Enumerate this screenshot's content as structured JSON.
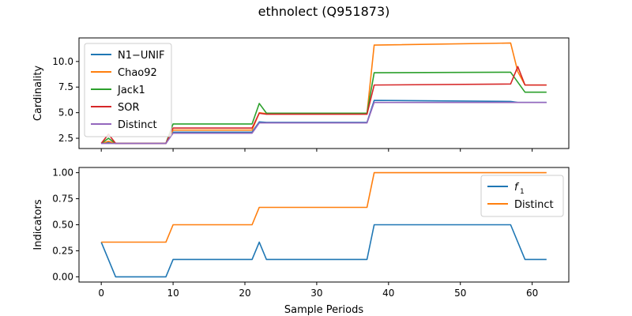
{
  "figure": {
    "title": "ethnolect (Q951873)",
    "xlabel": "Sample Periods"
  },
  "chart_data": [
    {
      "type": "line",
      "ylabel": "Cardinality",
      "xlim": [
        -3.1,
        65.1
      ],
      "ylim": [
        1.5,
        12.3
      ],
      "xticks": [
        0,
        10,
        20,
        30,
        40,
        50,
        60
      ],
      "yticks": [
        2.5,
        5.0,
        7.5,
        10.0
      ],
      "ytick_labels": [
        "2.5",
        "5.0",
        "7.5",
        "10.0"
      ],
      "legend": "upper-left",
      "grid": false,
      "series": [
        {
          "name": "N1−UNIF",
          "color": "#1f77b4",
          "points": [
            [
              0,
              2.0
            ],
            [
              1,
              2.1
            ],
            [
              2,
              2.0
            ],
            [
              9,
              2.0
            ],
            [
              10,
              3.1
            ],
            [
              21,
              3.1
            ],
            [
              22,
              4.1
            ],
            [
              23,
              4.05
            ],
            [
              37,
              4.05
            ],
            [
              38,
              6.2
            ],
            [
              57,
              6.1
            ],
            [
              58,
              6.0
            ],
            [
              62,
              6.0
            ]
          ]
        },
        {
          "name": "Chao92",
          "color": "#ff7f0e",
          "points": [
            [
              0,
              2.0
            ],
            [
              1,
              2.2
            ],
            [
              2,
              2.0
            ],
            [
              9,
              2.0
            ],
            [
              10,
              3.3
            ],
            [
              21,
              3.3
            ],
            [
              22,
              5.0
            ],
            [
              23,
              4.9
            ],
            [
              37,
              4.9
            ],
            [
              38,
              11.6
            ],
            [
              57,
              11.8
            ],
            [
              58,
              9.0
            ],
            [
              59,
              7.7
            ],
            [
              62,
              7.7
            ]
          ]
        },
        {
          "name": "Jack1",
          "color": "#2ca02c",
          "points": [
            [
              0,
              2.0
            ],
            [
              1,
              2.5
            ],
            [
              2,
              2.0
            ],
            [
              9,
              2.0
            ],
            [
              10,
              3.9
            ],
            [
              21,
              3.9
            ],
            [
              22,
              5.9
            ],
            [
              23,
              4.95
            ],
            [
              37,
              4.95
            ],
            [
              38,
              8.9
            ],
            [
              57,
              8.95
            ],
            [
              59,
              7.0
            ],
            [
              62,
              7.0
            ]
          ]
        },
        {
          "name": "SOR",
          "color": "#d62728",
          "points": [
            [
              0,
              2.0
            ],
            [
              1,
              2.9
            ],
            [
              2,
              2.0
            ],
            [
              9,
              2.0
            ],
            [
              10,
              3.5
            ],
            [
              21,
              3.5
            ],
            [
              22,
              4.95
            ],
            [
              23,
              4.85
            ],
            [
              37,
              4.85
            ],
            [
              38,
              7.7
            ],
            [
              57,
              7.8
            ],
            [
              58,
              9.5
            ],
            [
              59,
              7.7
            ],
            [
              62,
              7.7
            ]
          ]
        },
        {
          "name": "Distinct",
          "color": "#9467bd",
          "points": [
            [
              0,
              2.0
            ],
            [
              2,
              2.0
            ],
            [
              9,
              2.0
            ],
            [
              10,
              3.0
            ],
            [
              21,
              3.0
            ],
            [
              22,
              4.0
            ],
            [
              37,
              4.0
            ],
            [
              38,
              6.0
            ],
            [
              62,
              6.0
            ]
          ]
        }
      ]
    },
    {
      "type": "line",
      "ylabel": "Indicators",
      "xlim": [
        -3.1,
        65.1
      ],
      "ylim": [
        -0.05,
        1.05
      ],
      "xticks": [
        0,
        10,
        20,
        30,
        40,
        50,
        60
      ],
      "yticks": [
        0.0,
        0.25,
        0.5,
        0.75,
        1.0
      ],
      "ytick_labels": [
        "0.00",
        "0.25",
        "0.50",
        "0.75",
        "1.00"
      ],
      "legend": "upper-right",
      "grid": false,
      "series": [
        {
          "name": "f1",
          "label_main": "f",
          "label_sub": "1",
          "color": "#1f77b4",
          "points": [
            [
              0,
              0.333
            ],
            [
              2,
              0.0
            ],
            [
              9,
              0.0
            ],
            [
              10,
              0.167
            ],
            [
              21,
              0.167
            ],
            [
              22,
              0.333
            ],
            [
              23,
              0.167
            ],
            [
              37,
              0.167
            ],
            [
              38,
              0.5
            ],
            [
              57,
              0.5
            ],
            [
              59,
              0.167
            ],
            [
              62,
              0.167
            ]
          ]
        },
        {
          "name": "Distinct",
          "color": "#ff7f0e",
          "points": [
            [
              0,
              0.333
            ],
            [
              9,
              0.333
            ],
            [
              10,
              0.5
            ],
            [
              21,
              0.5
            ],
            [
              22,
              0.667
            ],
            [
              37,
              0.667
            ],
            [
              38,
              1.0
            ],
            [
              62,
              1.0
            ]
          ]
        }
      ]
    }
  ]
}
